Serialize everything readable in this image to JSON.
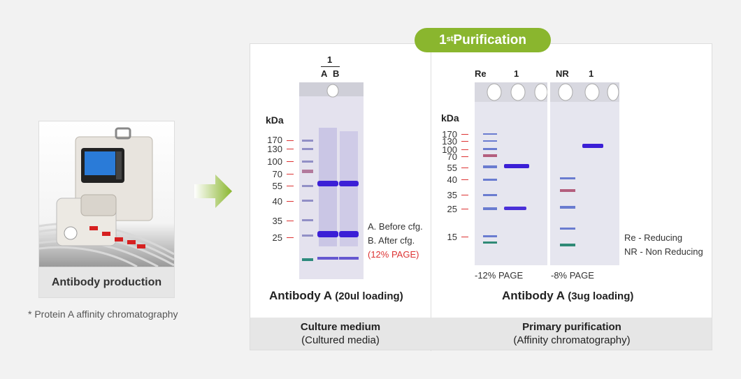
{
  "product": {
    "caption": "Antibody production",
    "footnote": "* Protein A affinity chromatography"
  },
  "badge": {
    "main": "1",
    "sup": "st",
    "rest": " Purification"
  },
  "left_gel": {
    "lane_header_top": "1",
    "lane_a": "A",
    "lane_b": "B",
    "kda_label": "kDa",
    "markers": [
      "170",
      "130",
      "100",
      "70",
      "55",
      "40",
      "35",
      "25"
    ],
    "legend_a": "A. Before cfg.",
    "legend_b": "B. After cfg.",
    "legend_page": "(12% PAGE)",
    "title_main": "Antibody A",
    "title_sub": " (20ul loading)"
  },
  "right_gel": {
    "lane_re": "Re",
    "lane_1a": "1",
    "lane_nr": "NR",
    "lane_1b": "1",
    "kda_label": "kDa",
    "markers": [
      "170",
      "130",
      "100",
      "70",
      "55",
      "40",
      "35",
      "25",
      "15"
    ],
    "page_left": "-12% PAGE",
    "page_right": "-8% PAGE",
    "legend_re": "Re - Reducing",
    "legend_nr": "NR - Non Reducing",
    "title_main": "Antibody A",
    "title_sub": " (3ug loading)"
  },
  "footer": {
    "left_line1": "Culture medium",
    "left_line2": "(Cultured media)",
    "right_line1": "Primary purification",
    "right_line2": "(Affinity chromatography)"
  },
  "colors": {
    "accent_green": "#8ab62e",
    "tick_red": "#dd3333",
    "band_blue": "#3b1fd6"
  }
}
